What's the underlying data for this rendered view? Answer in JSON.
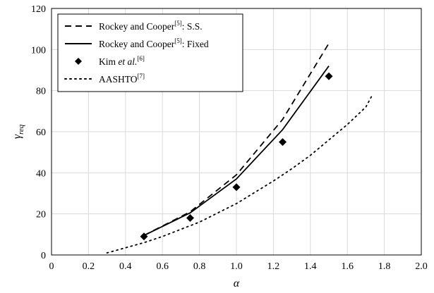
{
  "chart_data": {
    "type": "line",
    "xlabel": "α",
    "ylabel_main": "γ",
    "ylabel_sub": "req",
    "xlim": [
      0,
      2.0
    ],
    "ylim": [
      0,
      120
    ],
    "x_ticks": [
      "0",
      "0.2",
      "0.4",
      "0.6",
      "0.8",
      "1.0",
      "1.2",
      "1.4",
      "1.6",
      "1.8",
      "2.0"
    ],
    "y_ticks": [
      "0",
      "20",
      "40",
      "60",
      "80",
      "100",
      "120"
    ],
    "grid": true,
    "legend_position": "top-left",
    "series": [
      {
        "name": "Rockey and Cooper[5]: S.S.",
        "legend": {
          "prefix": "Rockey and Cooper",
          "sup": "[5]",
          "suffix": ": S.S."
        },
        "style": "dashed",
        "color": "#000000",
        "x": [
          0.5,
          0.75,
          1.0,
          1.25,
          1.5
        ],
        "y": [
          9.5,
          21,
          39,
          66,
          103
        ]
      },
      {
        "name": "Rockey and Cooper[5]: Fixed",
        "legend": {
          "prefix": "Rockey and Cooper",
          "sup": "[5]",
          "suffix": ": Fixed"
        },
        "style": "solid",
        "color": "#000000",
        "x": [
          0.5,
          0.75,
          1.0,
          1.25,
          1.5
        ],
        "y": [
          9.5,
          20.5,
          37,
          61,
          92
        ]
      },
      {
        "name": "Kim et al.[6]",
        "legend": {
          "prefix": "Kim ",
          "ital": "et al.",
          "sup": "[6]",
          "suffix": ""
        },
        "style": "marker-diamond",
        "color": "#000000",
        "x": [
          0.5,
          0.75,
          1.0,
          1.25,
          1.5
        ],
        "y": [
          9,
          18,
          33,
          55,
          87
        ]
      },
      {
        "name": "AASHTO[7]",
        "legend": {
          "prefix": "AASHTO",
          "sup": "[7]",
          "suffix": ""
        },
        "style": "dotted",
        "color": "#000000",
        "x": [
          0.3,
          0.4,
          0.5,
          0.6,
          0.7,
          0.8,
          0.9,
          1.0,
          1.1,
          1.2,
          1.3,
          1.4,
          1.5,
          1.6,
          1.7,
          1.73
        ],
        "y": [
          1,
          3.5,
          6,
          9,
          12.5,
          16,
          20.5,
          25,
          30.5,
          36,
          42,
          48.5,
          56,
          63.5,
          72,
          77
        ]
      }
    ]
  }
}
